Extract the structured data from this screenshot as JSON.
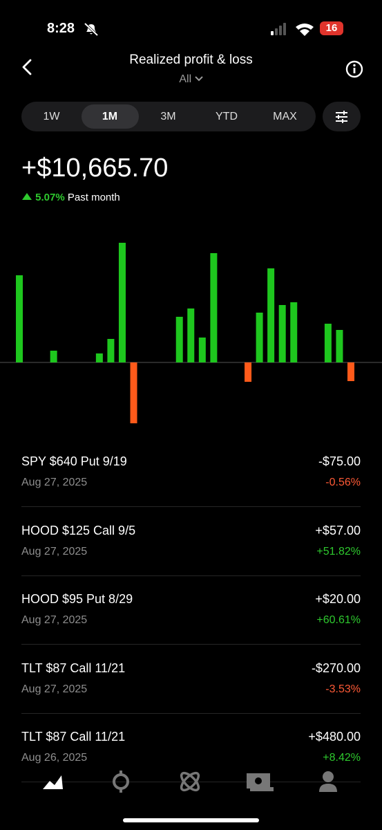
{
  "status": {
    "time": "8:28",
    "battery": "16"
  },
  "header": {
    "title": "Realized profit & loss",
    "filter": "All"
  },
  "tabs": [
    "1W",
    "1M",
    "3M",
    "YTD",
    "MAX"
  ],
  "selected_tab": 1,
  "summary": {
    "amount": "+$10,665.70",
    "change": "5.07%",
    "period": "Past month",
    "color": "#2ec92e"
  },
  "chart_data": {
    "type": "bar",
    "categories": [
      null,
      null,
      null,
      null,
      null,
      null,
      null,
      null,
      null,
      null,
      null,
      null,
      null,
      null,
      null,
      null,
      null,
      null,
      null,
      null,
      null,
      null,
      null,
      null,
      null,
      null,
      null,
      null,
      null,
      null
    ],
    "values": [
      126,
      null,
      null,
      17,
      null,
      null,
      null,
      13,
      34,
      173,
      -88,
      null,
      null,
      null,
      66,
      78,
      36,
      158,
      null,
      null,
      -28,
      72,
      136,
      83,
      87,
      null,
      null,
      56,
      47,
      -27
    ],
    "ylim": [
      -96,
      184
    ],
    "colors": {
      "gain": "#1ec71e",
      "loss": "#ff5a1a"
    }
  },
  "list": [
    {
      "name": "SPY $640 Put 9/19",
      "date": "Aug 27, 2025",
      "amount": "-$75.00",
      "percent": "-0.56%",
      "color": "#ff5a36"
    },
    {
      "name": "HOOD $125 Call 9/5",
      "date": "Aug 27, 2025",
      "amount": "+$57.00",
      "percent": "+51.82%",
      "color": "#2ec92e"
    },
    {
      "name": "HOOD $95 Put 8/29",
      "date": "Aug 27, 2025",
      "amount": "+$20.00",
      "percent": "+60.61%",
      "color": "#2ec92e"
    },
    {
      "name": "TLT $87 Call 11/21",
      "date": "Aug 27, 2025",
      "amount": "-$270.00",
      "percent": "-3.53%",
      "color": "#ff5a36"
    },
    {
      "name": "TLT $87 Call 11/21",
      "date": "Aug 26, 2025",
      "amount": "+$480.00",
      "percent": "+8.42%",
      "color": "#2ec92e"
    }
  ]
}
